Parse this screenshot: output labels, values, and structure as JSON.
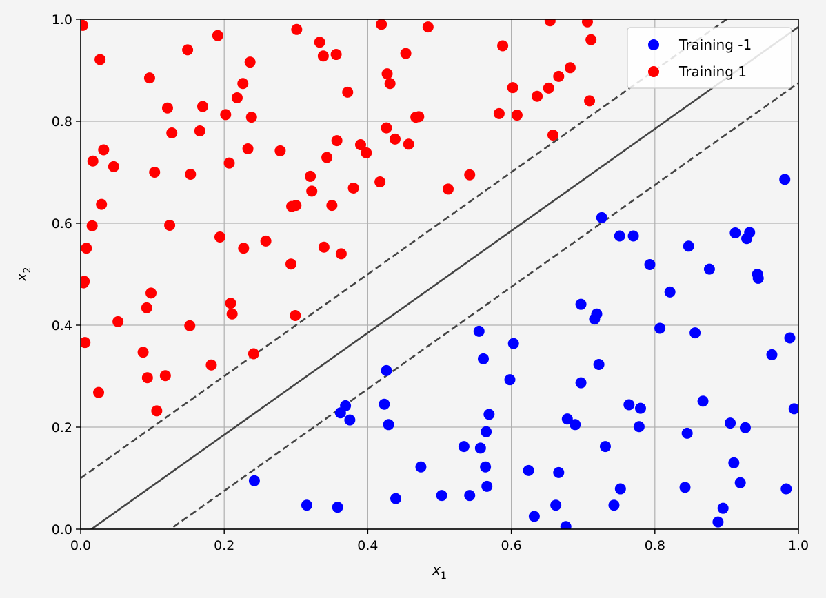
{
  "chart_data": {
    "type": "scatter",
    "title": "",
    "xlabel": {
      "base": "x",
      "sub": "1"
    },
    "ylabel": {
      "base": "x",
      "sub": "2"
    },
    "xlim": [
      0,
      1
    ],
    "ylim": [
      0,
      1
    ],
    "xticks": [
      "0.0",
      "0.2",
      "0.4",
      "0.6",
      "0.8",
      "1.0"
    ],
    "yticks": [
      "0.0",
      "0.2",
      "0.4",
      "0.6",
      "0.8",
      "1.0"
    ],
    "grid": true,
    "legend_position": "top-right",
    "lines": [
      {
        "kind": "decision-boundary",
        "style": "solid",
        "color": "#444444",
        "slope": 1.0,
        "intercept": -0.015
      },
      {
        "kind": "margin-upper",
        "style": "dashed",
        "color": "#444444",
        "slope": 1.0,
        "intercept": 0.1
      },
      {
        "kind": "margin-lower",
        "style": "dashed",
        "color": "#444444",
        "slope": 1.0,
        "intercept": -0.125
      }
    ],
    "series": [
      {
        "name": "Training -1",
        "color": "#0000ff",
        "points": [
          [
            0.242,
            0.095
          ],
          [
            0.315,
            0.047
          ],
          [
            0.358,
            0.043
          ],
          [
            0.362,
            0.228
          ],
          [
            0.369,
            0.242
          ],
          [
            0.375,
            0.214
          ],
          [
            0.423,
            0.245
          ],
          [
            0.426,
            0.311
          ],
          [
            0.429,
            0.205
          ],
          [
            0.439,
            0.06
          ],
          [
            0.474,
            0.122
          ],
          [
            0.503,
            0.066
          ],
          [
            0.534,
            0.162
          ],
          [
            0.542,
            0.066
          ],
          [
            0.555,
            0.388
          ],
          [
            0.557,
            0.159
          ],
          [
            0.561,
            0.334
          ],
          [
            0.564,
            0.122
          ],
          [
            0.565,
            0.191
          ],
          [
            0.566,
            0.084
          ],
          [
            0.569,
            0.225
          ],
          [
            0.598,
            0.293
          ],
          [
            0.603,
            0.364
          ],
          [
            0.624,
            0.115
          ],
          [
            0.632,
            0.025
          ],
          [
            0.662,
            0.047
          ],
          [
            0.666,
            0.111
          ],
          [
            0.676,
            0.005
          ],
          [
            0.678,
            0.216
          ],
          [
            0.689,
            0.205
          ],
          [
            0.697,
            0.441
          ],
          [
            0.697,
            0.287
          ],
          [
            0.716,
            0.412
          ],
          [
            0.719,
            0.422
          ],
          [
            0.722,
            0.323
          ],
          [
            0.726,
            0.611
          ],
          [
            0.731,
            0.162
          ],
          [
            0.743,
            0.047
          ],
          [
            0.751,
            0.575
          ],
          [
            0.752,
            0.079
          ],
          [
            0.764,
            0.244
          ],
          [
            0.77,
            0.575
          ],
          [
            0.778,
            0.201
          ],
          [
            0.78,
            0.237
          ],
          [
            0.793,
            0.519
          ],
          [
            0.807,
            0.394
          ],
          [
            0.821,
            0.465
          ],
          [
            0.842,
            0.082
          ],
          [
            0.845,
            0.188
          ],
          [
            0.847,
            0.555
          ],
          [
            0.856,
            0.385
          ],
          [
            0.867,
            0.251
          ],
          [
            0.876,
            0.51
          ],
          [
            0.888,
            0.014
          ],
          [
            0.895,
            0.041
          ],
          [
            0.905,
            0.208
          ],
          [
            0.91,
            0.13
          ],
          [
            0.912,
            0.581
          ],
          [
            0.919,
            0.091
          ],
          [
            0.926,
            0.199
          ],
          [
            0.928,
            0.57
          ],
          [
            0.932,
            0.582
          ],
          [
            0.943,
            0.5
          ],
          [
            0.944,
            0.492
          ],
          [
            0.963,
            0.342
          ],
          [
            0.981,
            0.686
          ],
          [
            0.983,
            0.079
          ],
          [
            0.988,
            0.375
          ],
          [
            0.994,
            0.236
          ]
        ]
      },
      {
        "name": "Training 1",
        "color": "#ff0000",
        "points": [
          [
            0.003,
            0.988
          ],
          [
            0.004,
            0.483
          ],
          [
            0.005,
            0.486
          ],
          [
            0.006,
            0.366
          ],
          [
            0.008,
            0.551
          ],
          [
            0.016,
            0.595
          ],
          [
            0.017,
            0.722
          ],
          [
            0.025,
            0.268
          ],
          [
            0.027,
            0.921
          ],
          [
            0.029,
            0.637
          ],
          [
            0.032,
            0.744
          ],
          [
            0.046,
            0.711
          ],
          [
            0.052,
            0.407
          ],
          [
            0.087,
            0.347
          ],
          [
            0.092,
            0.434
          ],
          [
            0.093,
            0.297
          ],
          [
            0.096,
            0.885
          ],
          [
            0.098,
            0.463
          ],
          [
            0.103,
            0.7
          ],
          [
            0.106,
            0.232
          ],
          [
            0.118,
            0.301
          ],
          [
            0.121,
            0.826
          ],
          [
            0.124,
            0.596
          ],
          [
            0.127,
            0.777
          ],
          [
            0.149,
            0.94
          ],
          [
            0.152,
            0.399
          ],
          [
            0.153,
            0.696
          ],
          [
            0.166,
            0.781
          ],
          [
            0.17,
            0.829
          ],
          [
            0.182,
            0.322
          ],
          [
            0.191,
            0.968
          ],
          [
            0.194,
            0.573
          ],
          [
            0.202,
            0.813
          ],
          [
            0.207,
            0.718
          ],
          [
            0.209,
            0.443
          ],
          [
            0.211,
            0.422
          ],
          [
            0.218,
            0.846
          ],
          [
            0.226,
            0.874
          ],
          [
            0.227,
            0.551
          ],
          [
            0.233,
            0.746
          ],
          [
            0.236,
            0.916
          ],
          [
            0.238,
            0.808
          ],
          [
            0.241,
            0.344
          ],
          [
            0.258,
            0.565
          ],
          [
            0.278,
            0.742
          ],
          [
            0.293,
            0.52
          ],
          [
            0.294,
            0.633
          ],
          [
            0.299,
            0.419
          ],
          [
            0.3,
            0.635
          ],
          [
            0.301,
            0.98
          ],
          [
            0.32,
            0.692
          ],
          [
            0.322,
            0.663
          ],
          [
            0.333,
            0.955
          ],
          [
            0.338,
            0.928
          ],
          [
            0.339,
            0.553
          ],
          [
            0.343,
            0.729
          ],
          [
            0.35,
            0.635
          ],
          [
            0.356,
            0.931
          ],
          [
            0.357,
            0.762
          ],
          [
            0.363,
            0.54
          ],
          [
            0.372,
            0.857
          ],
          [
            0.38,
            0.669
          ],
          [
            0.39,
            0.754
          ],
          [
            0.398,
            0.738
          ],
          [
            0.417,
            0.681
          ],
          [
            0.419,
            0.99
          ],
          [
            0.426,
            0.787
          ],
          [
            0.427,
            0.893
          ],
          [
            0.431,
            0.874
          ],
          [
            0.438,
            0.765
          ],
          [
            0.453,
            0.933
          ],
          [
            0.457,
            0.755
          ],
          [
            0.467,
            0.808
          ],
          [
            0.471,
            0.809
          ],
          [
            0.484,
            0.985
          ],
          [
            0.512,
            0.667
          ],
          [
            0.542,
            0.695
          ],
          [
            0.583,
            0.815
          ],
          [
            0.588,
            0.948
          ],
          [
            0.602,
            0.866
          ],
          [
            0.608,
            0.812
          ],
          [
            0.636,
            0.849
          ],
          [
            0.652,
            0.865
          ],
          [
            0.654,
            0.997
          ],
          [
            0.658,
            0.773
          ],
          [
            0.666,
            0.888
          ],
          [
            0.682,
            0.905
          ],
          [
            0.706,
            0.995
          ],
          [
            0.709,
            0.84
          ],
          [
            0.711,
            0.96
          ]
        ]
      }
    ]
  }
}
